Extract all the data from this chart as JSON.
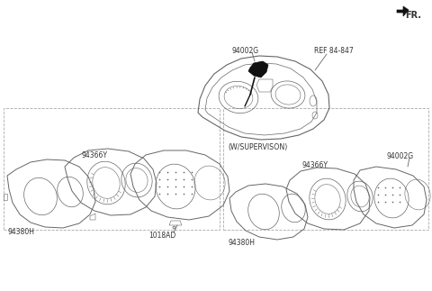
{
  "bg_color": "#ffffff",
  "lc": "#666666",
  "tc": "#333333",
  "fr_label": "FR.",
  "ref_label": "REF 84-847",
  "label_94002G_top": "94002G",
  "label_94366Y_L": "94366Y",
  "label_94380H_L": "94380H",
  "label_1018AD": "1018AD",
  "label_wsup": "(W/SUPERVISON)",
  "label_94002G_R": "94002G",
  "label_94366Y_R": "94366Y",
  "label_94380H_R": "94380H",
  "fs": 5.5
}
